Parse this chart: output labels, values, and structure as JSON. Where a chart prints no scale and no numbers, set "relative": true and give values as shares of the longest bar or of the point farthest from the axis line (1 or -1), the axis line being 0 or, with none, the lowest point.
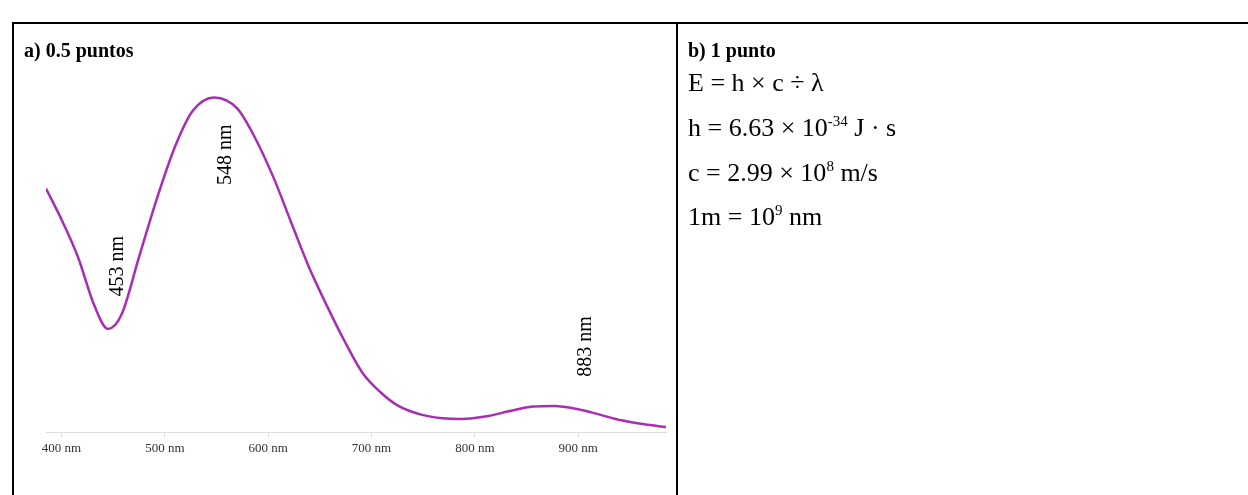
{
  "chart_data": [
    {
      "type": "line",
      "title": "a) 0.5 puntos",
      "relative": true,
      "xlim": [
        385,
        985
      ],
      "xticks": [
        {
          "value": 400,
          "label": "400 nm"
        },
        {
          "value": 500,
          "label": "500 nm"
        },
        {
          "value": 600,
          "label": "600 nm"
        },
        {
          "value": 700,
          "label": "700 nm"
        },
        {
          "value": 800,
          "label": "800 nm"
        },
        {
          "value": 900,
          "label": "900 nm"
        }
      ],
      "series": [
        {
          "color": "#a82cb4",
          "x": [
            385,
            401,
            416,
            432,
            445,
            458,
            475,
            492,
            510,
            527,
            548,
            570,
            587,
            605,
            622,
            639,
            657,
            674,
            691,
            709,
            726,
            748,
            769,
            787,
            813,
            834,
            856,
            877,
            899,
            921,
            942,
            964,
            985
          ],
          "values": [
            0.728,
            0.629,
            0.523,
            0.377,
            0.309,
            0.351,
            0.523,
            0.695,
            0.854,
            0.96,
            1.0,
            0.967,
            0.881,
            0.762,
            0.629,
            0.497,
            0.377,
            0.272,
            0.179,
            0.119,
            0.079,
            0.053,
            0.042,
            0.04,
            0.049,
            0.064,
            0.077,
            0.079,
            0.07,
            0.053,
            0.036,
            0.024,
            0.016
          ]
        }
      ],
      "annotations": [
        "453 nm",
        "548 nm",
        "883 nm"
      ]
    },
    {
      "type": "other",
      "title": "b) 1 punto",
      "annotations": [
        "E = h × c ÷ λ",
        "h = 6.63 × 10$^{-34}$ J · s",
        "c = 2.99 × 10$^{8}$ m/s",
        "1m = 10$^{9}$ nm"
      ]
    }
  ]
}
